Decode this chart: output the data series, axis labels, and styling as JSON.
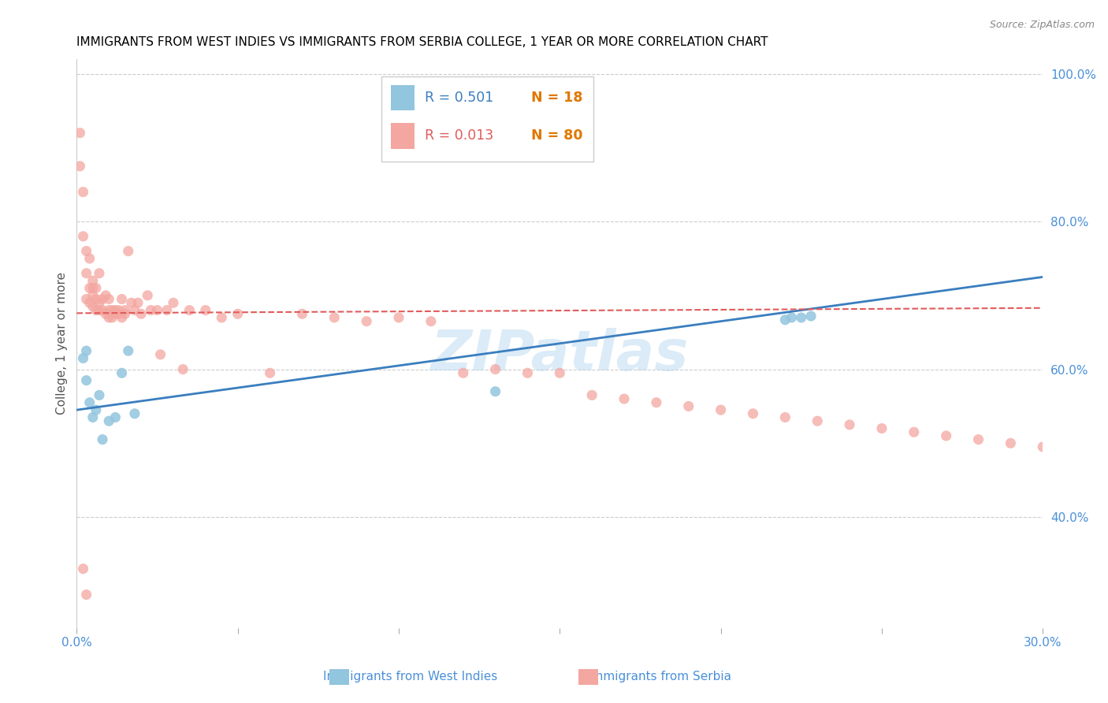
{
  "title": "IMMIGRANTS FROM WEST INDIES VS IMMIGRANTS FROM SERBIA COLLEGE, 1 YEAR OR MORE CORRELATION CHART",
  "source_text": "Source: ZipAtlas.com",
  "ylabel": "College, 1 year or more",
  "xlim": [
    0.0,
    0.3
  ],
  "ylim": [
    0.25,
    1.02
  ],
  "xtick_positions": [
    0.0,
    0.05,
    0.1,
    0.15,
    0.2,
    0.25,
    0.3
  ],
  "xtick_labels": [
    "0.0%",
    "",
    "",
    "",
    "",
    "",
    "30.0%"
  ],
  "ytick_labels_right": [
    "100.0%",
    "80.0%",
    "60.0%",
    "40.0%"
  ],
  "yticks_right": [
    1.0,
    0.8,
    0.6,
    0.4
  ],
  "legend_blue_R": "R = 0.501",
  "legend_blue_N": "N = 18",
  "legend_pink_R": "R = 0.013",
  "legend_pink_N": "N = 80",
  "blue_color": "#92c5de",
  "pink_color": "#f4a6a0",
  "blue_line_color": "#3a7ebf",
  "pink_line_color": "#e05c5c",
  "blue_line_x0": 0.0,
  "blue_line_x1": 0.3,
  "blue_line_y0": 0.545,
  "blue_line_y1": 0.725,
  "pink_line_x0": 0.0,
  "pink_line_x1": 0.3,
  "pink_line_y0": 0.676,
  "pink_line_y1": 0.683,
  "watermark_text": "ZIPatlas",
  "marker_size": 90,
  "background_color": "#ffffff",
  "grid_color": "#cccccc",
  "title_fontsize": 11,
  "tick_color": "#4a90d9",
  "legend_R_color_blue": "#3a7ebf",
  "legend_N_color_blue": "#e07800",
  "legend_R_color_pink": "#e05c5c",
  "legend_N_color_pink": "#e07800",
  "blue_scatter_x": [
    0.002,
    0.003,
    0.003,
    0.004,
    0.005,
    0.006,
    0.007,
    0.008,
    0.01,
    0.012,
    0.014,
    0.016,
    0.018,
    0.13,
    0.22,
    0.222,
    0.225,
    0.228
  ],
  "blue_scatter_y": [
    0.615,
    0.625,
    0.585,
    0.555,
    0.535,
    0.545,
    0.565,
    0.505,
    0.53,
    0.535,
    0.595,
    0.625,
    0.54,
    0.57,
    0.667,
    0.67,
    0.67,
    0.672
  ],
  "pink_scatter_x": [
    0.001,
    0.001,
    0.002,
    0.002,
    0.003,
    0.003,
    0.003,
    0.004,
    0.004,
    0.004,
    0.005,
    0.005,
    0.005,
    0.005,
    0.006,
    0.006,
    0.006,
    0.007,
    0.007,
    0.007,
    0.008,
    0.008,
    0.009,
    0.009,
    0.01,
    0.01,
    0.01,
    0.011,
    0.011,
    0.012,
    0.012,
    0.013,
    0.013,
    0.014,
    0.014,
    0.015,
    0.015,
    0.016,
    0.017,
    0.018,
    0.019,
    0.02,
    0.022,
    0.023,
    0.025,
    0.026,
    0.028,
    0.03,
    0.033,
    0.035,
    0.04,
    0.045,
    0.05,
    0.06,
    0.07,
    0.08,
    0.09,
    0.1,
    0.11,
    0.12,
    0.13,
    0.14,
    0.15,
    0.16,
    0.17,
    0.18,
    0.19,
    0.2,
    0.21,
    0.22,
    0.23,
    0.24,
    0.25,
    0.26,
    0.27,
    0.28,
    0.29,
    0.3,
    0.002,
    0.003
  ],
  "pink_scatter_y": [
    0.875,
    0.92,
    0.84,
    0.78,
    0.76,
    0.73,
    0.695,
    0.71,
    0.69,
    0.75,
    0.71,
    0.7,
    0.685,
    0.72,
    0.695,
    0.71,
    0.68,
    0.69,
    0.68,
    0.73,
    0.68,
    0.695,
    0.675,
    0.7,
    0.67,
    0.68,
    0.695,
    0.68,
    0.67,
    0.68,
    0.675,
    0.675,
    0.68,
    0.67,
    0.695,
    0.675,
    0.68,
    0.76,
    0.69,
    0.68,
    0.69,
    0.675,
    0.7,
    0.68,
    0.68,
    0.62,
    0.68,
    0.69,
    0.6,
    0.68,
    0.68,
    0.67,
    0.675,
    0.595,
    0.675,
    0.67,
    0.665,
    0.67,
    0.665,
    0.595,
    0.6,
    0.595,
    0.595,
    0.565,
    0.56,
    0.555,
    0.55,
    0.545,
    0.54,
    0.535,
    0.53,
    0.525,
    0.52,
    0.515,
    0.51,
    0.505,
    0.5,
    0.495,
    0.33,
    0.295
  ]
}
